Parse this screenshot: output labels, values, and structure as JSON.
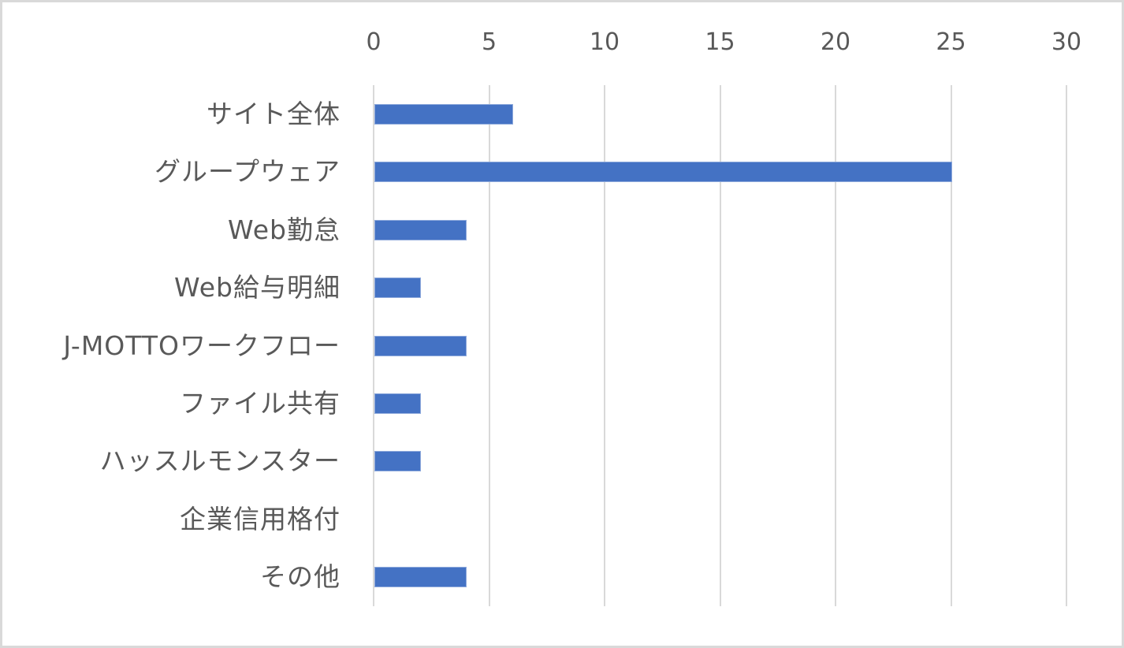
{
  "chart_data": {
    "type": "bar",
    "orientation": "horizontal",
    "title": "",
    "xlabel": "",
    "ylabel": "",
    "categories": [
      "サイト全体",
      "グループウェア",
      "Web勤怠",
      "Web給与明細",
      "J-MOTTOワークフロー",
      "ファイル共有",
      "ハッスルモンスター",
      "企業信用格付",
      "その他"
    ],
    "values": [
      6,
      25,
      4,
      2,
      4,
      2,
      2,
      0,
      4
    ],
    "xlim": [
      0,
      30
    ],
    "x_ticks": [
      "0",
      "5",
      "10",
      "15",
      "20",
      "25",
      "30"
    ],
    "x_axis_position": "top",
    "grid": true,
    "legend": "none",
    "bar_color": "#4472c4",
    "grid_color": "#d9d9d9",
    "text_color": "#595959"
  }
}
